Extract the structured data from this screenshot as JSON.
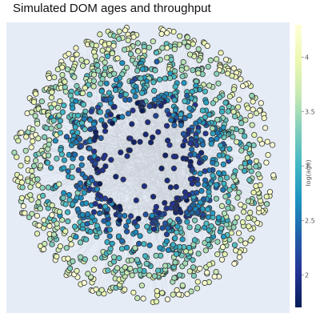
{
  "chart_data": {
    "type": "scatter",
    "title": "Simulated DOM ages and throughput",
    "subtype": "radial network graph",
    "n_nodes": 1500,
    "center_cluster": "ring of dark nodes around empty center",
    "colorscale": "YlGnBu",
    "colorscale_stops": [
      "#081d58",
      "#253494",
      "#225ea8",
      "#1d91c0",
      "#41b6c4",
      "#7fcdbb",
      "#c7e9b4",
      "#edf8b1",
      "#ffffd9"
    ],
    "colorbar": {
      "title": "log(age)",
      "range": [
        1.7,
        4.3
      ],
      "tick_values": [
        2,
        2.5,
        3,
        3.5,
        4
      ],
      "tick_labels": [
        "2",
        "2.5",
        "3",
        "3.5",
        "4"
      ]
    },
    "plot_background": "#e5ecf6",
    "marker_edge_color": "#333333",
    "edge_color": "#c8cdd6",
    "xaxis_visible": false,
    "yaxis_visible": false,
    "legend": "none"
  }
}
